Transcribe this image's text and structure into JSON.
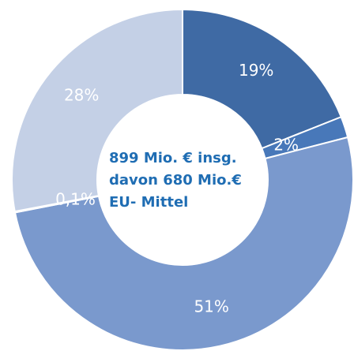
{
  "chart_data": {
    "type": "donut",
    "categories": [
      null,
      null,
      null,
      null,
      null
    ],
    "values": [
      19,
      2,
      51,
      0.1,
      28
    ],
    "value_labels": [
      "19%",
      "2%",
      "51%",
      "0,1%",
      "28%"
    ],
    "colors": [
      "#3f6aa4",
      "#4878b9",
      "#7a99cd",
      "#8ba6d4",
      "#c4d0e6"
    ],
    "annotations": [
      "899 Mio. € insg.",
      "davon 680 Mio.€",
      "EU- Mittel"
    ]
  }
}
